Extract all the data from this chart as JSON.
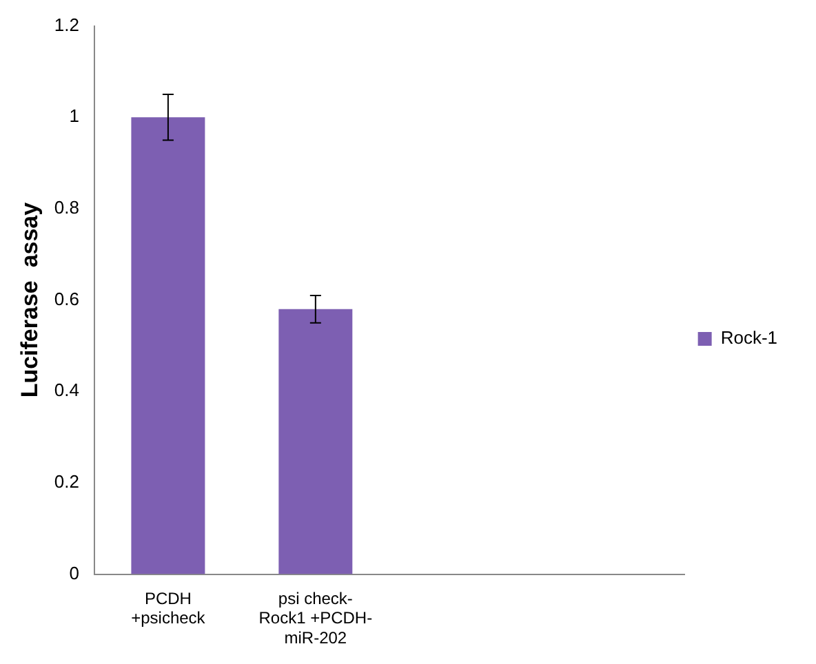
{
  "chart_data": {
    "type": "bar",
    "ylabel": "Luciferase  assay",
    "categories": [
      "PCDH +psicheck",
      "psi check-Rock1 +PCDH-miR-202",
      null,
      null
    ],
    "series": [
      {
        "name": "Rock-1",
        "color": "#7d5fb2",
        "values": [
          1.0,
          0.58,
          null,
          null
        ],
        "errors": [
          0.05,
          0.03,
          null,
          null
        ]
      }
    ],
    "ylim": [
      0,
      1.2
    ],
    "yticks": [
      0,
      0.2,
      0.4,
      0.6,
      0.8,
      1,
      1.2
    ],
    "grid": false,
    "legend": "right"
  }
}
